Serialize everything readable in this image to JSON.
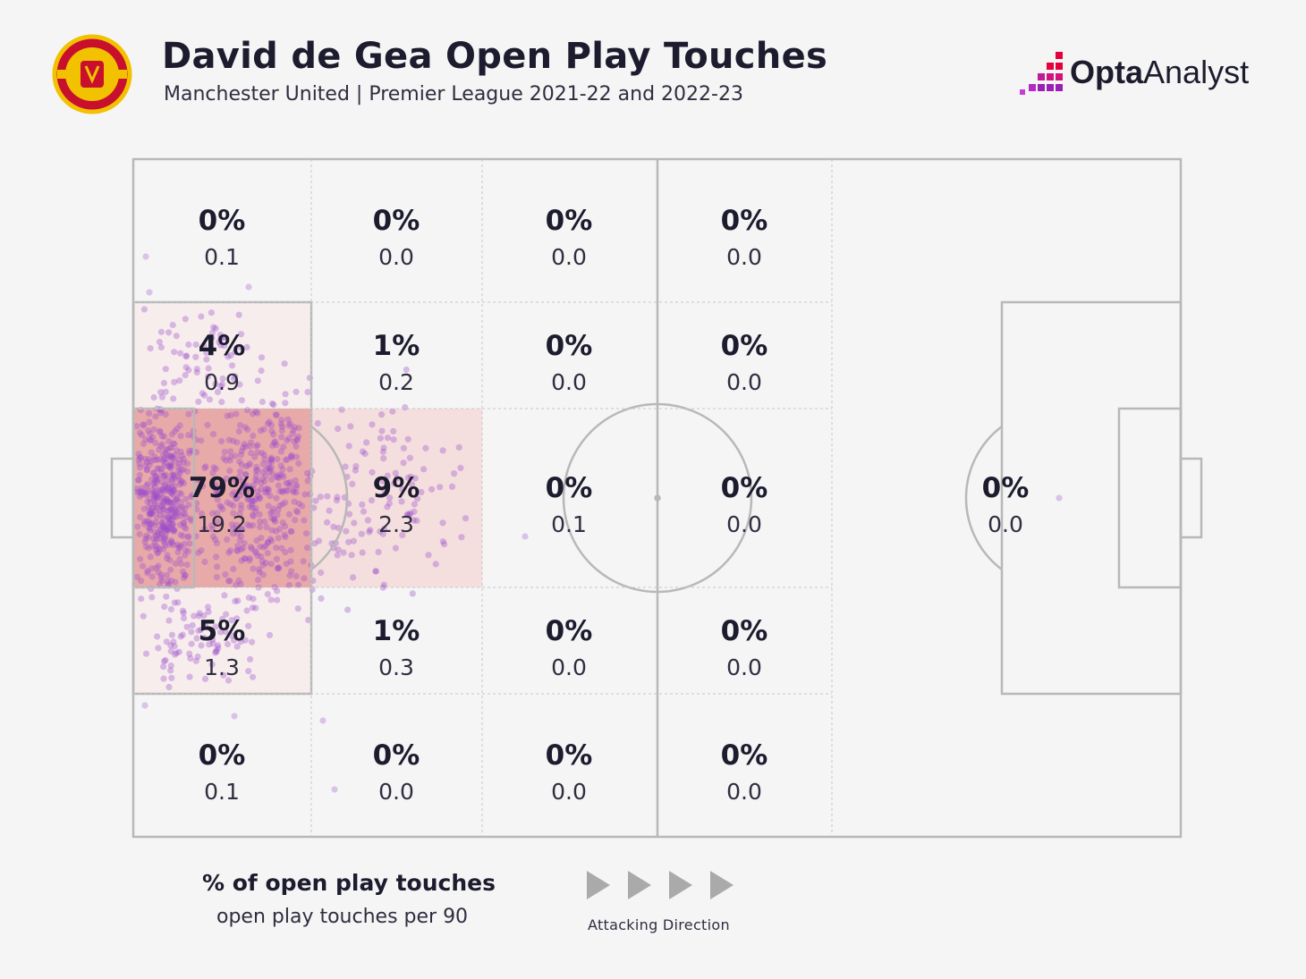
{
  "header": {
    "title": "David de Gea Open Play Touches",
    "subtitle": "Manchester United | Premier League 2021-22 and 2022-23",
    "crest_icon": "manchester-united-crest",
    "brand_bold": "Opta",
    "brand_light": "Analyst",
    "brand_icon": "opta-analyst-logo"
  },
  "legend": {
    "pct_label": "% of open play touches",
    "per90_label": "open play touches per 90",
    "direction_label": "Attacking Direction",
    "direction_icon": "arrow-right-icon"
  },
  "colors": {
    "background": "#f5f5f5",
    "pitch_lines": "#b8b8b8",
    "touch_dots": "#9b4dca",
    "zone_high": "#e8a9a9",
    "zone_mid": "#f4dede",
    "zone_low": "#f7eded"
  },
  "chart_data": {
    "type": "heatmap",
    "title": "David de Gea Open Play Touches",
    "subtitle": "Manchester United | Premier League 2021-22 and 2022-23",
    "rows": [
      "row-1",
      "row-2",
      "row-3",
      "row-4",
      "row-5"
    ],
    "columns": [
      "col-1",
      "col-2",
      "col-3",
      "col-4",
      "col-5-final-third"
    ],
    "zones": [
      {
        "row": 1,
        "col": 1,
        "pct": "0%",
        "per90": "0.1",
        "shade": "none"
      },
      {
        "row": 1,
        "col": 2,
        "pct": "0%",
        "per90": "0.0",
        "shade": "none"
      },
      {
        "row": 1,
        "col": 3,
        "pct": "0%",
        "per90": "0.0",
        "shade": "none"
      },
      {
        "row": 1,
        "col": 4,
        "pct": "0%",
        "per90": "0.0",
        "shade": "none"
      },
      {
        "row": 2,
        "col": 1,
        "pct": "4%",
        "per90": "0.9",
        "shade": "low"
      },
      {
        "row": 2,
        "col": 2,
        "pct": "1%",
        "per90": "0.2",
        "shade": "none"
      },
      {
        "row": 2,
        "col": 3,
        "pct": "0%",
        "per90": "0.0",
        "shade": "none"
      },
      {
        "row": 2,
        "col": 4,
        "pct": "0%",
        "per90": "0.0",
        "shade": "none"
      },
      {
        "row": 3,
        "col": 1,
        "pct": "79%",
        "per90": "19.2",
        "shade": "high"
      },
      {
        "row": 3,
        "col": 2,
        "pct": "9%",
        "per90": "2.3",
        "shade": "mid"
      },
      {
        "row": 3,
        "col": 3,
        "pct": "0%",
        "per90": "0.1",
        "shade": "none"
      },
      {
        "row": 3,
        "col": 4,
        "pct": "0%",
        "per90": "0.0",
        "shade": "none"
      },
      {
        "row": 3,
        "col": 5,
        "pct": "0%",
        "per90": "0.0",
        "shade": "none"
      },
      {
        "row": 4,
        "col": 1,
        "pct": "5%",
        "per90": "1.3",
        "shade": "low"
      },
      {
        "row": 4,
        "col": 2,
        "pct": "1%",
        "per90": "0.3",
        "shade": "none"
      },
      {
        "row": 4,
        "col": 3,
        "pct": "0%",
        "per90": "0.0",
        "shade": "none"
      },
      {
        "row": 4,
        "col": 4,
        "pct": "0%",
        "per90": "0.0",
        "shade": "none"
      },
      {
        "row": 5,
        "col": 1,
        "pct": "0%",
        "per90": "0.1",
        "shade": "none"
      },
      {
        "row": 5,
        "col": 2,
        "pct": "0%",
        "per90": "0.0",
        "shade": "none"
      },
      {
        "row": 5,
        "col": 3,
        "pct": "0%",
        "per90": "0.0",
        "shade": "none"
      },
      {
        "row": 5,
        "col": 4,
        "pct": "0%",
        "per90": "0.0",
        "shade": "none"
      }
    ],
    "legend": "bottom-left",
    "grid": true
  }
}
